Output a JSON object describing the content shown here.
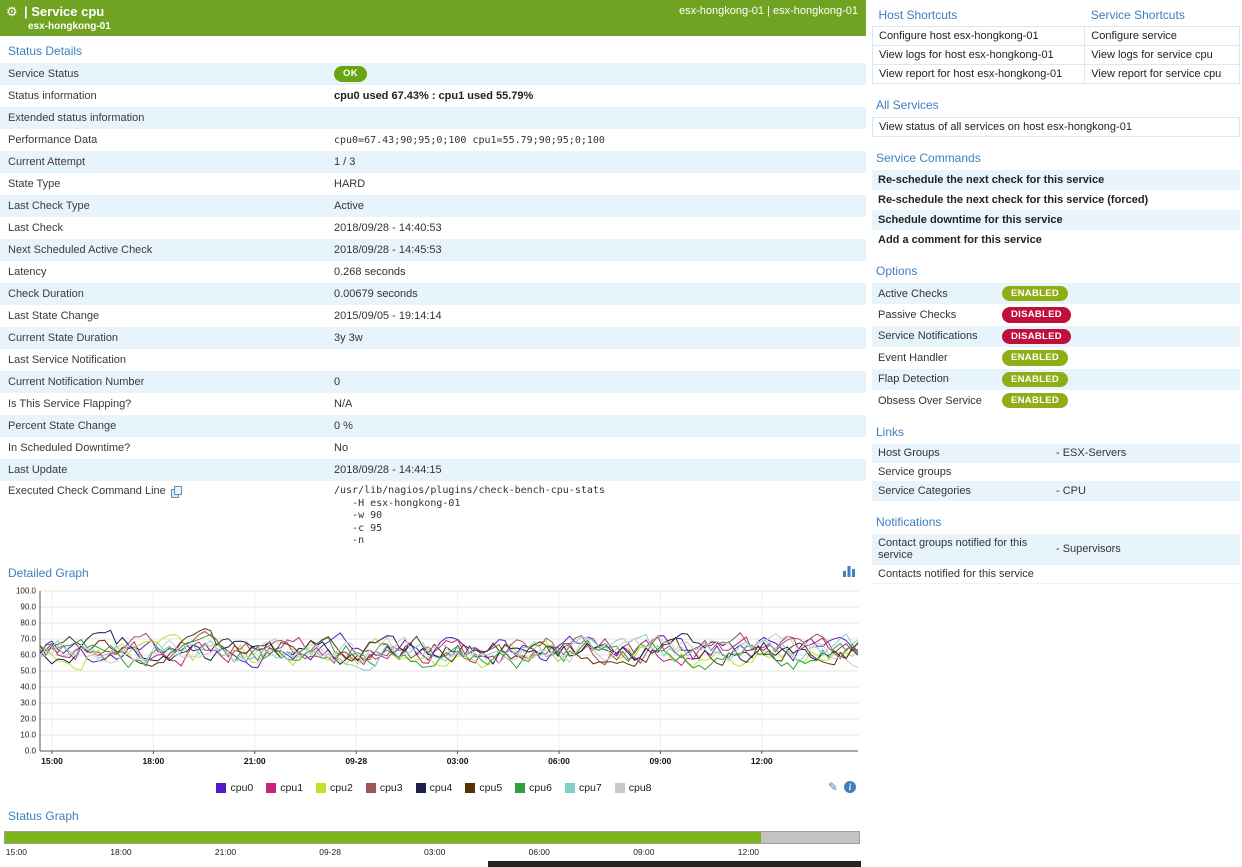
{
  "header": {
    "title": "| Service cpu",
    "subtitle": "esx-hongkong-01",
    "right_text": "esx-hongkong-01 | esx-hongkong-01"
  },
  "icons": {
    "gear": "⚙",
    "pencil": "✎",
    "info": "i"
  },
  "colors": {
    "header_green": "#6FA321",
    "accent_blue": "#3E7FBF",
    "row_alt": "#E8F4FB",
    "ok_badge": "#68A50F",
    "enabled_badge": "#8FAD17",
    "disabled_badge": "#C0103D",
    "status_ok_bar": "#7CB41E",
    "status_nodata_bar": "#C3C3C3"
  },
  "status_details": {
    "section_title": "Status Details",
    "rows": [
      {
        "label": "Service Status",
        "value": "OK",
        "type": "badge-ok"
      },
      {
        "label": "Status information",
        "value": "cpu0 used 67.43% : cpu1 used 55.79%",
        "type": "bold"
      },
      {
        "label": "Extended status information",
        "value": ""
      },
      {
        "label": "Performance Data",
        "value": "cpu0=67.43;90;95;0;100 cpu1=55.79;90;95;0;100",
        "type": "mono"
      },
      {
        "label": "Current Attempt",
        "value": "1 / 3"
      },
      {
        "label": "State Type",
        "value": "HARD"
      },
      {
        "label": "Last Check Type",
        "value": "Active"
      },
      {
        "label": "Last Check",
        "value": "2018/09/28 - 14:40:53"
      },
      {
        "label": "Next Scheduled Active Check",
        "value": "2018/09/28 - 14:45:53"
      },
      {
        "label": "Latency",
        "value": "0.268 seconds"
      },
      {
        "label": "Check Duration",
        "value": "0.00679 seconds"
      },
      {
        "label": "Last State Change",
        "value": "2015/09/05 - 19:14:14"
      },
      {
        "label": "Current State Duration",
        "value": "3y 3w"
      },
      {
        "label": "Last Service Notification",
        "value": ""
      },
      {
        "label": "Current Notification Number",
        "value": "0"
      },
      {
        "label": "Is This Service Flapping?",
        "value": "N/A"
      },
      {
        "label": "Percent State Change",
        "value": "0 %"
      },
      {
        "label": "In Scheduled Downtime?",
        "value": "No"
      },
      {
        "label": "Last Update",
        "value": "2018/09/28 - 14:44:15"
      },
      {
        "label": "Executed Check Command Line",
        "value": "/usr/lib/nagios/plugins/check-bench-cpu-stats\n   -H esx-hongkong-01\n   -w 90\n   -c 95\n   -n",
        "type": "mono-multiline",
        "icon": "copy-icon"
      }
    ]
  },
  "chart_data": [
    {
      "type": "line",
      "title": "Detailed Graph",
      "ylim": [
        0,
        100
      ],
      "y_tick_step": 10,
      "x_ticks": [
        "15:00",
        "18:00",
        "21:00",
        "09-28",
        "03:00",
        "06:00",
        "09:00",
        "12:00"
      ],
      "grid": true,
      "legend_position": "bottom",
      "series": [
        {
          "name": "cpu0",
          "color": "#5518C6",
          "approx_mean": 63,
          "approx_min": 46,
          "approx_max": 82
        },
        {
          "name": "cpu1",
          "color": "#C22579",
          "approx_mean": 62,
          "approx_min": 45,
          "approx_max": 80
        },
        {
          "name": "cpu2",
          "color": "#BFE32A",
          "approx_mean": 61,
          "approx_min": 46,
          "approx_max": 79
        },
        {
          "name": "cpu3",
          "color": "#A05454",
          "approx_mean": 63,
          "approx_min": 47,
          "approx_max": 81
        },
        {
          "name": "cpu4",
          "color": "#1E1E50",
          "approx_mean": 62,
          "approx_min": 45,
          "approx_max": 83
        },
        {
          "name": "cpu5",
          "color": "#5A3208",
          "approx_mean": 64,
          "approx_min": 47,
          "approx_max": 82
        },
        {
          "name": "cpu6",
          "color": "#2FA038",
          "approx_mean": 60,
          "approx_min": 45,
          "approx_max": 79
        },
        {
          "name": "cpu7",
          "color": "#82CEC9",
          "approx_mean": 62,
          "approx_min": 46,
          "approx_max": 80
        },
        {
          "name": "cpu8",
          "color": "#C9C9C9",
          "approx_mean": 63,
          "approx_min": 47,
          "approx_max": 81
        }
      ]
    },
    {
      "type": "timeline",
      "title": "Status Graph",
      "x_ticks": [
        "15:00",
        "18:00",
        "21:00",
        "09-28",
        "03:00",
        "06:00",
        "09:00",
        "12:00"
      ],
      "segments": [
        {
          "label": "ok",
          "color": "#7CB41E",
          "fraction": 0.885
        },
        {
          "label": "no-data",
          "color": "#C3C3C3",
          "fraction": 0.115
        }
      ]
    }
  ],
  "right_panel": {
    "shortcuts": {
      "host_header": "Host Shortcuts",
      "service_header": "Service Shortcuts",
      "rows": [
        {
          "host": "Configure host esx-hongkong-01",
          "service": "Configure service"
        },
        {
          "host": "View logs for host esx-hongkong-01",
          "service": "View logs for service cpu"
        },
        {
          "host": "View report for host esx-hongkong-01",
          "service": "View report for service cpu"
        }
      ]
    },
    "all_services": {
      "header": "All Services",
      "items": [
        "View status of all services on host esx-hongkong-01"
      ]
    },
    "service_commands": {
      "header": "Service Commands",
      "items": [
        "Re-schedule the next check for this service",
        "Re-schedule the next check for this service (forced)",
        "Schedule downtime for this service",
        "Add a comment for this service"
      ]
    },
    "options": {
      "header": "Options",
      "items": [
        {
          "label": "Active Checks",
          "state": "ENABLED"
        },
        {
          "label": "Passive Checks",
          "state": "DISABLED"
        },
        {
          "label": "Service Notifications",
          "state": "DISABLED"
        },
        {
          "label": "Event Handler",
          "state": "ENABLED"
        },
        {
          "label": "Flap Detection",
          "state": "ENABLED"
        },
        {
          "label": "Obsess Over Service",
          "state": "ENABLED"
        }
      ]
    },
    "links": {
      "header": "Links",
      "items": [
        {
          "label": "Host Groups",
          "value": "- ESX-Servers"
        },
        {
          "label": "Service groups",
          "value": ""
        },
        {
          "label": "Service Categories",
          "value": "- CPU"
        }
      ]
    },
    "notifications": {
      "header": "Notifications",
      "items": [
        {
          "label": "Contact groups notified for this service",
          "value": "- Supervisors"
        },
        {
          "label": "Contacts notified for this service",
          "value": ""
        }
      ]
    }
  }
}
